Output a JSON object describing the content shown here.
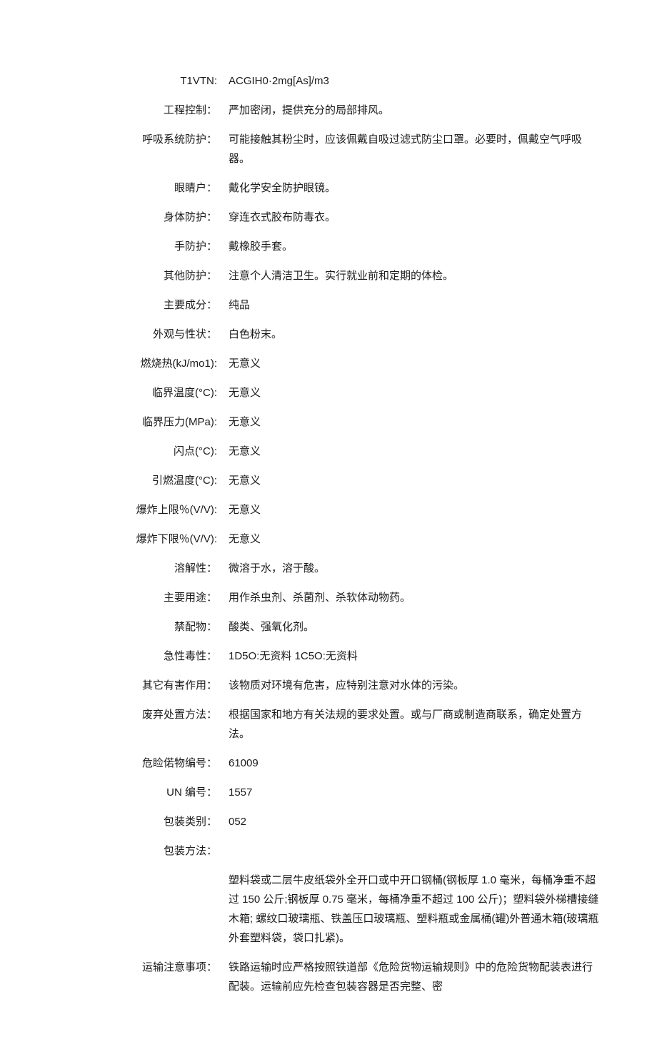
{
  "rows": [
    {
      "label": "T1VTN:",
      "value": "ACGIH0·2mg[As]/m3"
    },
    {
      "label": "工程控制：",
      "value": "严加密闭，提供充分的局部排风。"
    },
    {
      "label": "呼吸系统防护：",
      "value": "可能接触其粉尘时，应该佩戴自吸过滤式防尘口罩。必要时，佩戴空气呼吸器。"
    },
    {
      "label": "眼睛户：",
      "value": "戴化学安全防护眼镜。"
    },
    {
      "label": "身体防护：",
      "value": "穿连衣式胶布防毒衣。"
    },
    {
      "label": "手防护：",
      "value": "戴橡胶手套。"
    },
    {
      "label": "其他防护：",
      "value": "注意个人清洁卫生。实行就业前和定期的体检。"
    },
    {
      "label": "主要成分：",
      "value": "纯品"
    },
    {
      "label": "外观与性状：",
      "value": "白色粉末。"
    },
    {
      "label": "燃烧热(kJ/mo1):",
      "value": "无意义"
    },
    {
      "label": "临界温度(°C):",
      "value": "无意义"
    },
    {
      "label": "临界压力(MPa):",
      "value": "无意义"
    },
    {
      "label": "闪点(°C):",
      "value": "无意义"
    },
    {
      "label": "引燃温度(°C):",
      "value": "无意义"
    },
    {
      "label": "爆炸上限％(V/V):",
      "value": "无意义"
    },
    {
      "label": "爆炸下限％(V/V):",
      "value": "无意义"
    },
    {
      "label": "溶解性：",
      "value": "微溶于水，溶于酸。"
    },
    {
      "label": "主要用途：",
      "value": "用作杀虫剂、杀菌剂、杀软体动物药。"
    },
    {
      "label": "禁配物：",
      "value": "酸类、强氧化剂。"
    },
    {
      "label": "急性毒性：",
      "value": "1D5O:无资料 1C5O:无资料"
    },
    {
      "label": "其它有害作用：",
      "value": "该物质对环境有危害，应特别注意对水体的污染。"
    },
    {
      "label": "废弃处置方法：",
      "value": "根据国家和地方有关法规的要求处置。或与厂商或制造商联系，确定处置方法。"
    },
    {
      "label": "危睑偌物编号：",
      "value": "61009"
    },
    {
      "label": "UN 编号：",
      "value": "1557"
    },
    {
      "label": "包装类别：",
      "value": "052"
    },
    {
      "label": "包装方法：",
      "value": ""
    },
    {
      "label": "",
      "value": "塑料袋或二层牛皮纸袋外全开口或中开口钢桶(钢板厚 1.0 毫米，每桶净重不超过 150 公斤;钢板厚 0.75 毫米，每桶净重不超过 100 公斤)；塑料袋外梯槽接缝木箱; 螺纹口玻璃瓶、铁盖压口玻璃瓶、塑料瓶或金属桶(罐)外普通木箱(玻璃瓶外套塑料袋，袋口扎紧)。"
    },
    {
      "label": "运输注意事项：",
      "value": "铁路运输时应严格按照铁道部《危险货物运输规则》中的危险货物配装表进行配装。运输前应先检查包装容器是否完整、密"
    }
  ],
  "styles": {
    "background_color": "#ffffff",
    "text_color": "#1a1a1a",
    "font_size": 15,
    "label_width": 240
  }
}
